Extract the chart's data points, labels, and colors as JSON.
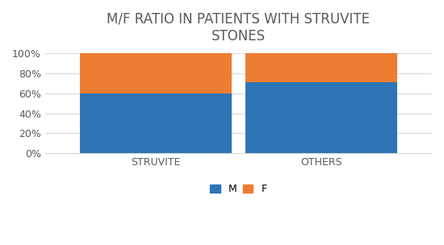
{
  "categories": [
    "STRUVITE",
    "OTHERS"
  ],
  "m_values": [
    60,
    71
  ],
  "f_values": [
    40,
    29
  ],
  "m_color": "#2e75b6",
  "f_color": "#ed7d31",
  "title_line1": "M/F RATIO IN PATIENTS WITH STRUVITE",
  "title_line2": "STONES",
  "ytick_labels": [
    "0%",
    "20%",
    "40%",
    "60%",
    "80%",
    "100%"
  ],
  "ytick_values": [
    0,
    20,
    40,
    60,
    80,
    100
  ],
  "ylim": [
    0,
    100
  ],
  "bar_width": 0.55,
  "legend_labels": [
    "M",
    "F"
  ],
  "title_fontsize": 12,
  "title_color": "#595959",
  "axis_fontsize": 9,
  "tick_color": "#595959",
  "legend_fontsize": 9,
  "background_color": "#ffffff",
  "grid_color": "#d9d9d9"
}
